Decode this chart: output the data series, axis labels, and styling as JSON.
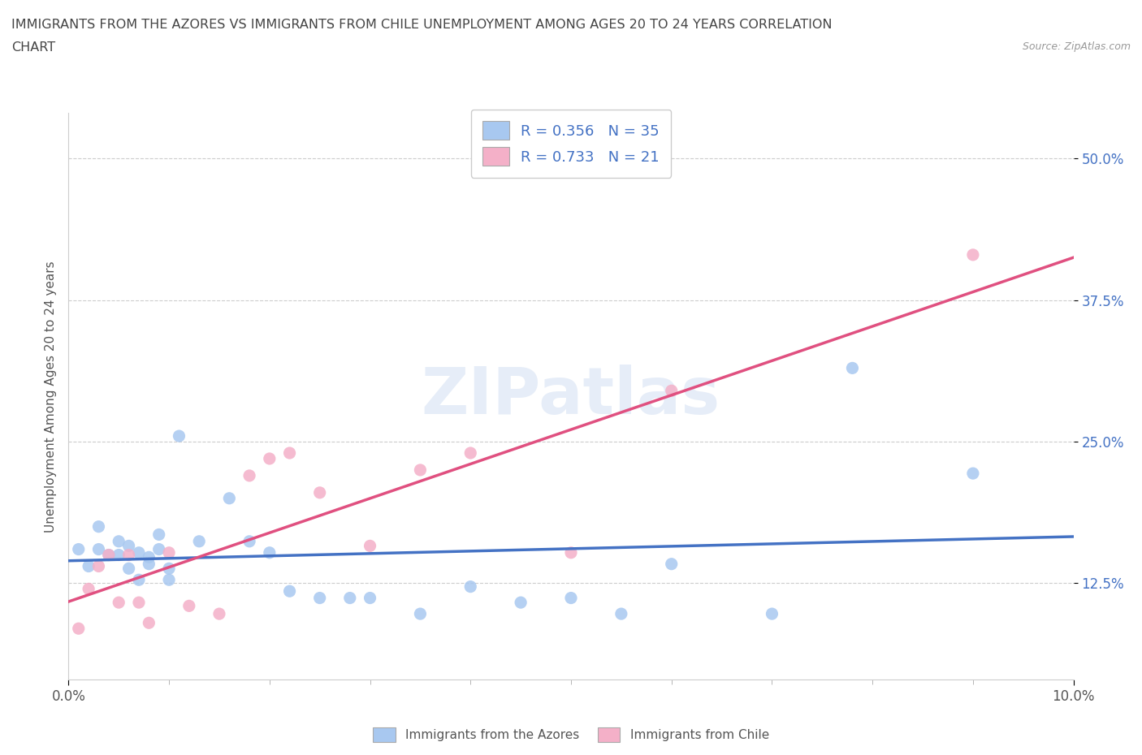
{
  "title_line1": "IMMIGRANTS FROM THE AZORES VS IMMIGRANTS FROM CHILE UNEMPLOYMENT AMONG AGES 20 TO 24 YEARS CORRELATION",
  "title_line2": "CHART",
  "source": "Source: ZipAtlas.com",
  "ylabel": "Unemployment Among Ages 20 to 24 years",
  "xmin": 0.0,
  "xmax": 0.1,
  "ymin": 0.04,
  "ymax": 0.54,
  "yticks": [
    0.125,
    0.25,
    0.375,
    0.5
  ],
  "azores_R": 0.356,
  "azores_N": 35,
  "chile_R": 0.733,
  "chile_N": 21,
  "azores_color": "#a8c8f0",
  "chile_color": "#f4b0c8",
  "azores_line_color": "#4472c4",
  "chile_line_color": "#e05080",
  "azores_x": [
    0.001,
    0.002,
    0.003,
    0.003,
    0.004,
    0.005,
    0.005,
    0.006,
    0.006,
    0.007,
    0.007,
    0.008,
    0.008,
    0.009,
    0.009,
    0.01,
    0.01,
    0.011,
    0.013,
    0.016,
    0.018,
    0.02,
    0.022,
    0.025,
    0.028,
    0.03,
    0.035,
    0.04,
    0.045,
    0.05,
    0.055,
    0.06,
    0.07,
    0.078,
    0.09
  ],
  "azores_y": [
    0.155,
    0.14,
    0.155,
    0.175,
    0.15,
    0.15,
    0.162,
    0.158,
    0.138,
    0.152,
    0.128,
    0.142,
    0.148,
    0.155,
    0.168,
    0.128,
    0.138,
    0.255,
    0.162,
    0.2,
    0.162,
    0.152,
    0.118,
    0.112,
    0.112,
    0.112,
    0.098,
    0.122,
    0.108,
    0.112,
    0.098,
    0.142,
    0.098,
    0.315,
    0.222
  ],
  "chile_x": [
    0.001,
    0.002,
    0.003,
    0.004,
    0.005,
    0.006,
    0.007,
    0.008,
    0.01,
    0.012,
    0.015,
    0.018,
    0.02,
    0.022,
    0.025,
    0.03,
    0.035,
    0.04,
    0.05,
    0.06,
    0.09
  ],
  "chile_y": [
    0.085,
    0.12,
    0.14,
    0.15,
    0.108,
    0.15,
    0.108,
    0.09,
    0.152,
    0.105,
    0.098,
    0.22,
    0.235,
    0.24,
    0.205,
    0.158,
    0.225,
    0.24,
    0.152,
    0.295,
    0.415
  ]
}
